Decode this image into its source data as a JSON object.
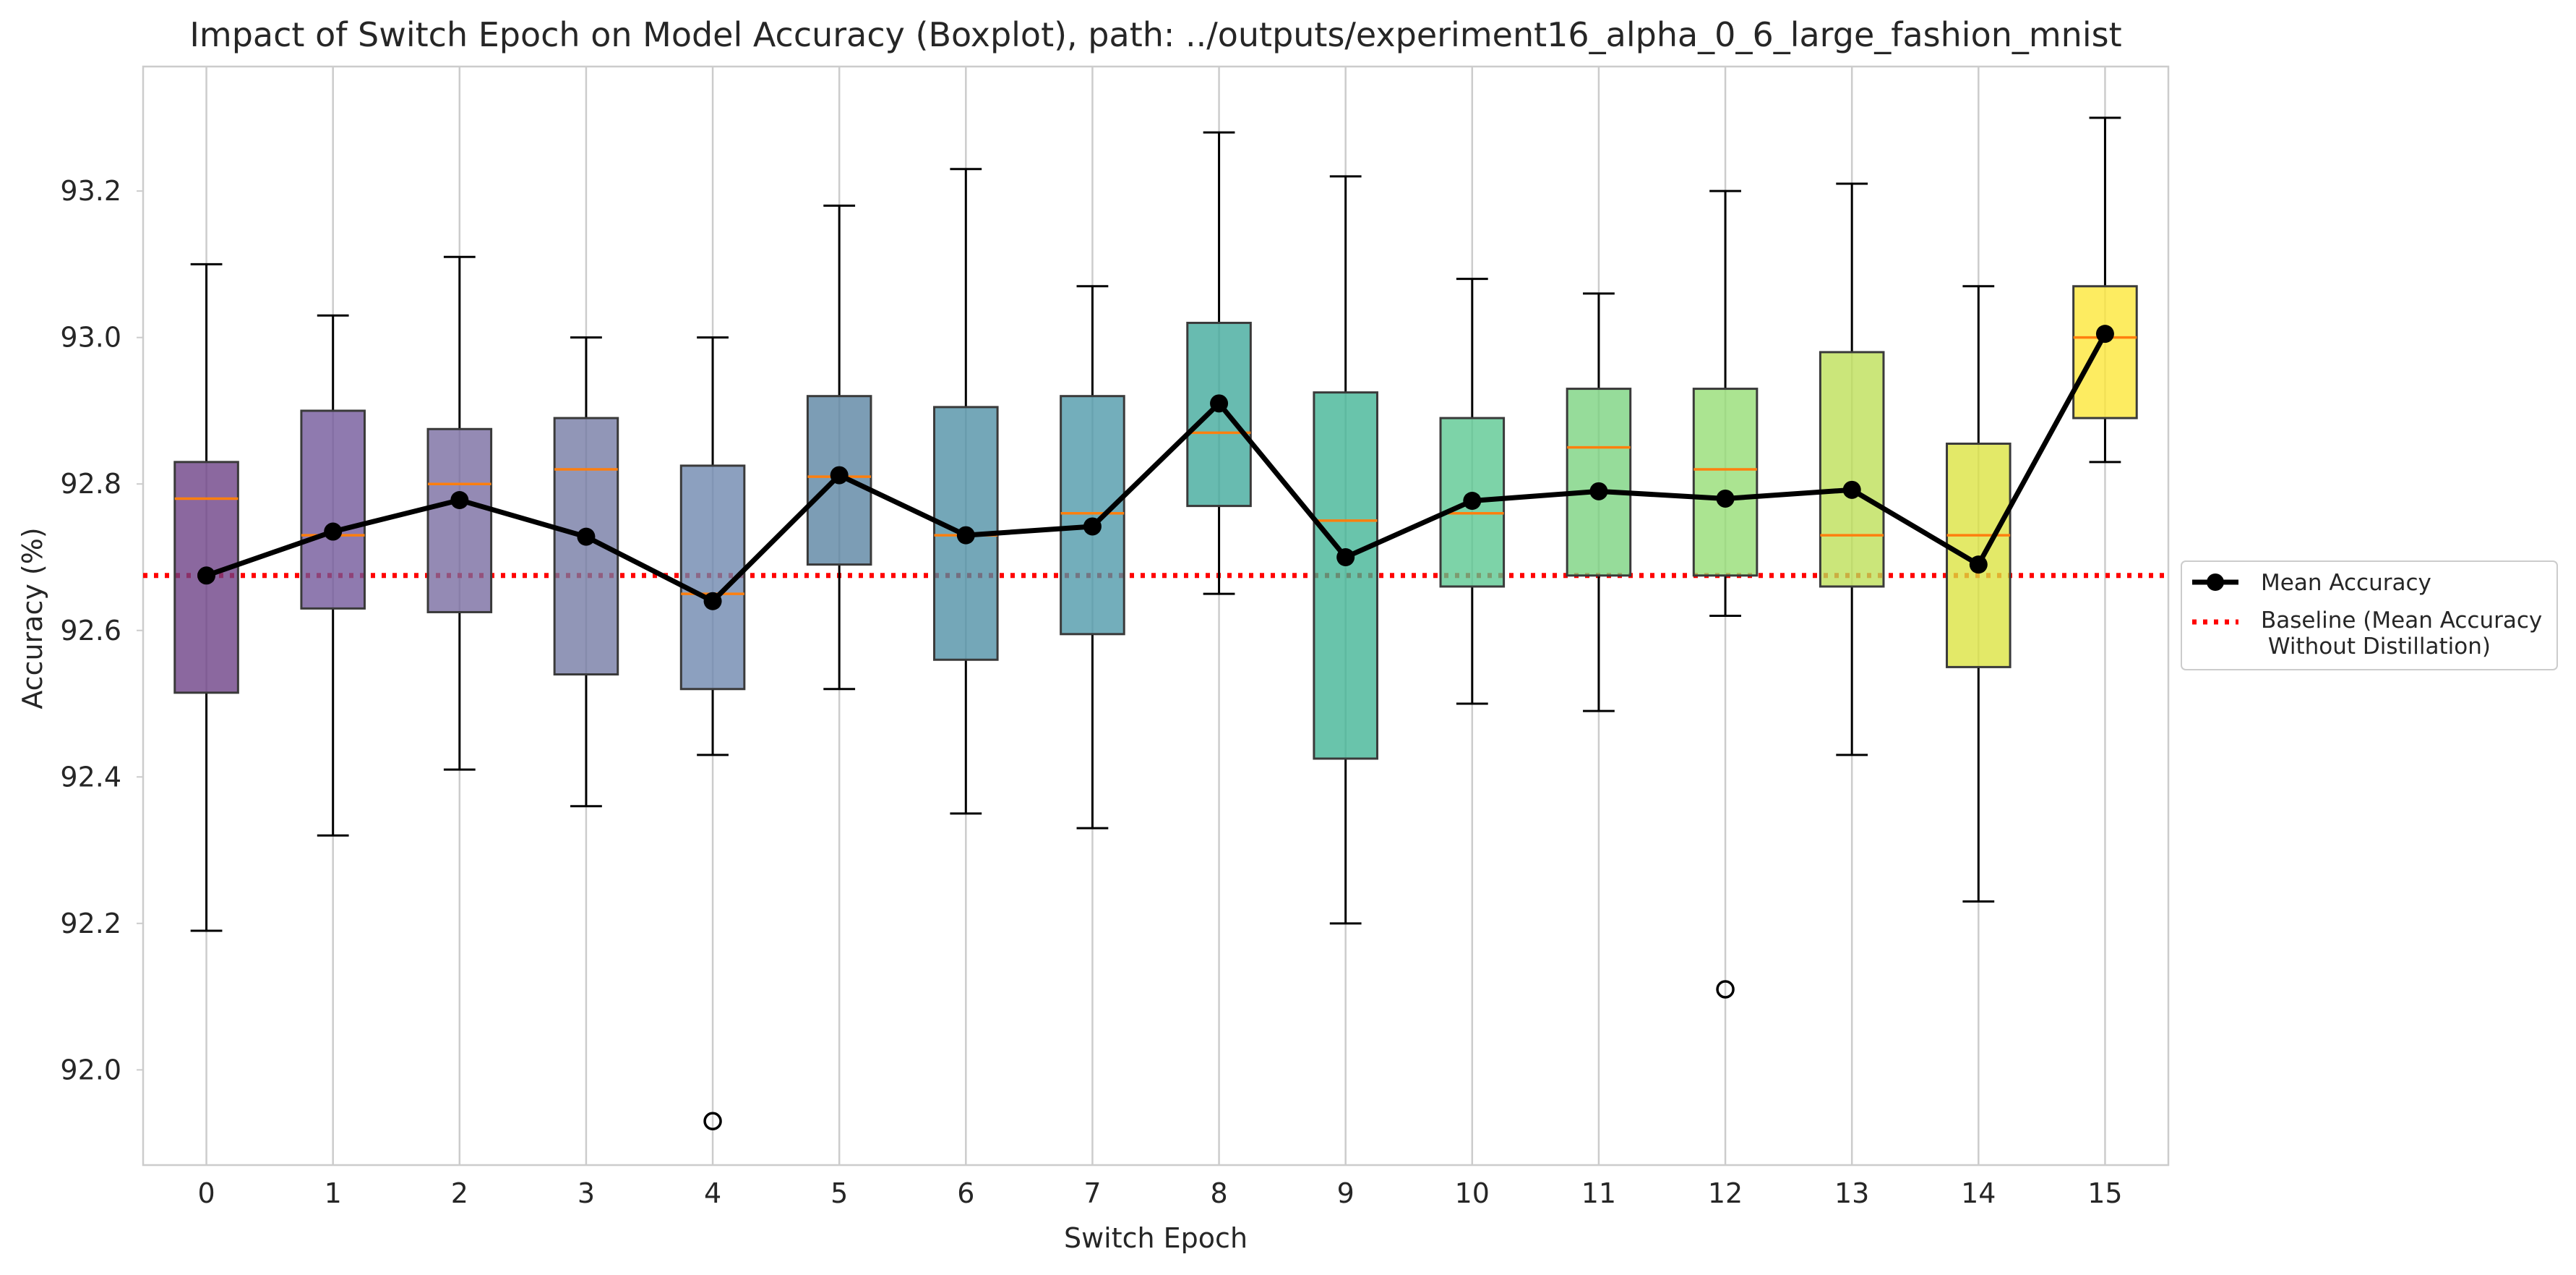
{
  "chart_data": {
    "type": "box",
    "title": "Impact of Switch Epoch on Model Accuracy (Boxplot), path: ../outputs/experiment16_alpha_0_6_large_fashion_mnist",
    "xlabel": "Switch Epoch",
    "ylabel": "Accuracy (%)",
    "categories": [
      "0",
      "1",
      "2",
      "3",
      "4",
      "5",
      "6",
      "7",
      "8",
      "9",
      "10",
      "11",
      "12",
      "13",
      "14",
      "15"
    ],
    "ylim": [
      91.87,
      93.37
    ],
    "yticks": [
      "92.0",
      "92.2",
      "92.4",
      "92.6",
      "92.8",
      "93.0",
      "93.2"
    ],
    "grid": "vertical",
    "colormap": "viridis",
    "boxes": [
      {
        "whislo": 92.19,
        "q1": 92.515,
        "med": 92.78,
        "q3": 92.83,
        "whishi": 93.1,
        "fliers": []
      },
      {
        "whislo": 92.32,
        "q1": 92.63,
        "med": 92.73,
        "q3": 92.9,
        "whishi": 93.03,
        "fliers": []
      },
      {
        "whislo": 92.41,
        "q1": 92.625,
        "med": 92.8,
        "q3": 92.875,
        "whishi": 93.11,
        "fliers": []
      },
      {
        "whislo": 92.36,
        "q1": 92.54,
        "med": 92.82,
        "q3": 92.89,
        "whishi": 93.0,
        "fliers": []
      },
      {
        "whislo": 92.43,
        "q1": 92.52,
        "med": 92.65,
        "q3": 92.825,
        "whishi": 93.0,
        "fliers": [
          91.93
        ]
      },
      {
        "whislo": 92.52,
        "q1": 92.69,
        "med": 92.81,
        "q3": 92.92,
        "whishi": 93.18,
        "fliers": []
      },
      {
        "whislo": 92.35,
        "q1": 92.56,
        "med": 92.73,
        "q3": 92.905,
        "whishi": 93.23,
        "fliers": []
      },
      {
        "whislo": 92.33,
        "q1": 92.595,
        "med": 92.76,
        "q3": 92.92,
        "whishi": 93.07,
        "fliers": []
      },
      {
        "whislo": 92.65,
        "q1": 92.77,
        "med": 92.87,
        "q3": 93.02,
        "whishi": 93.28,
        "fliers": []
      },
      {
        "whislo": 92.2,
        "q1": 92.425,
        "med": 92.75,
        "q3": 92.925,
        "whishi": 93.22,
        "fliers": []
      },
      {
        "whislo": 92.5,
        "q1": 92.66,
        "med": 92.76,
        "q3": 92.89,
        "whishi": 93.08,
        "fliers": []
      },
      {
        "whislo": 92.49,
        "q1": 92.675,
        "med": 92.85,
        "q3": 92.93,
        "whishi": 93.06,
        "fliers": []
      },
      {
        "whislo": 92.62,
        "q1": 92.675,
        "med": 92.82,
        "q3": 92.93,
        "whishi": 93.2,
        "fliers": [
          92.11
        ]
      },
      {
        "whislo": 92.43,
        "q1": 92.66,
        "med": 92.73,
        "q3": 92.98,
        "whishi": 93.21,
        "fliers": []
      },
      {
        "whislo": 92.23,
        "q1": 92.55,
        "med": 92.73,
        "q3": 92.855,
        "whishi": 93.07,
        "fliers": []
      },
      {
        "whislo": 92.83,
        "q1": 92.89,
        "med": 93.0,
        "q3": 93.07,
        "whishi": 93.3,
        "fliers": []
      }
    ],
    "box_colors": [
      "#6a3d84",
      "#6f5499",
      "#76699f",
      "#7278a3",
      "#6b85ad",
      "#5782a0",
      "#4d8ea4",
      "#4b97a8",
      "#3ea89a",
      "#3fb494",
      "#59c68f",
      "#78d27d",
      "#94dc72",
      "#bcdf55",
      "#dbe33e",
      "#fde735"
    ],
    "series": [
      {
        "name": "Mean Accuracy",
        "type": "line",
        "color": "#000000",
        "values": [
          92.675,
          92.735,
          92.778,
          92.728,
          92.64,
          92.812,
          92.73,
          92.742,
          92.91,
          92.7,
          92.777,
          92.79,
          92.78,
          92.792,
          92.69,
          93.005
        ]
      },
      {
        "name": "Baseline (Mean Accuracy\n Without Distillation)",
        "type": "hline",
        "color": "#ff0000",
        "value": 92.675
      }
    ],
    "legend": {
      "placement": "right",
      "entries": [
        "Mean Accuracy",
        "Baseline (Mean Accuracy",
        " Without Distillation)"
      ]
    },
    "median_color": "#ff7f0e"
  }
}
